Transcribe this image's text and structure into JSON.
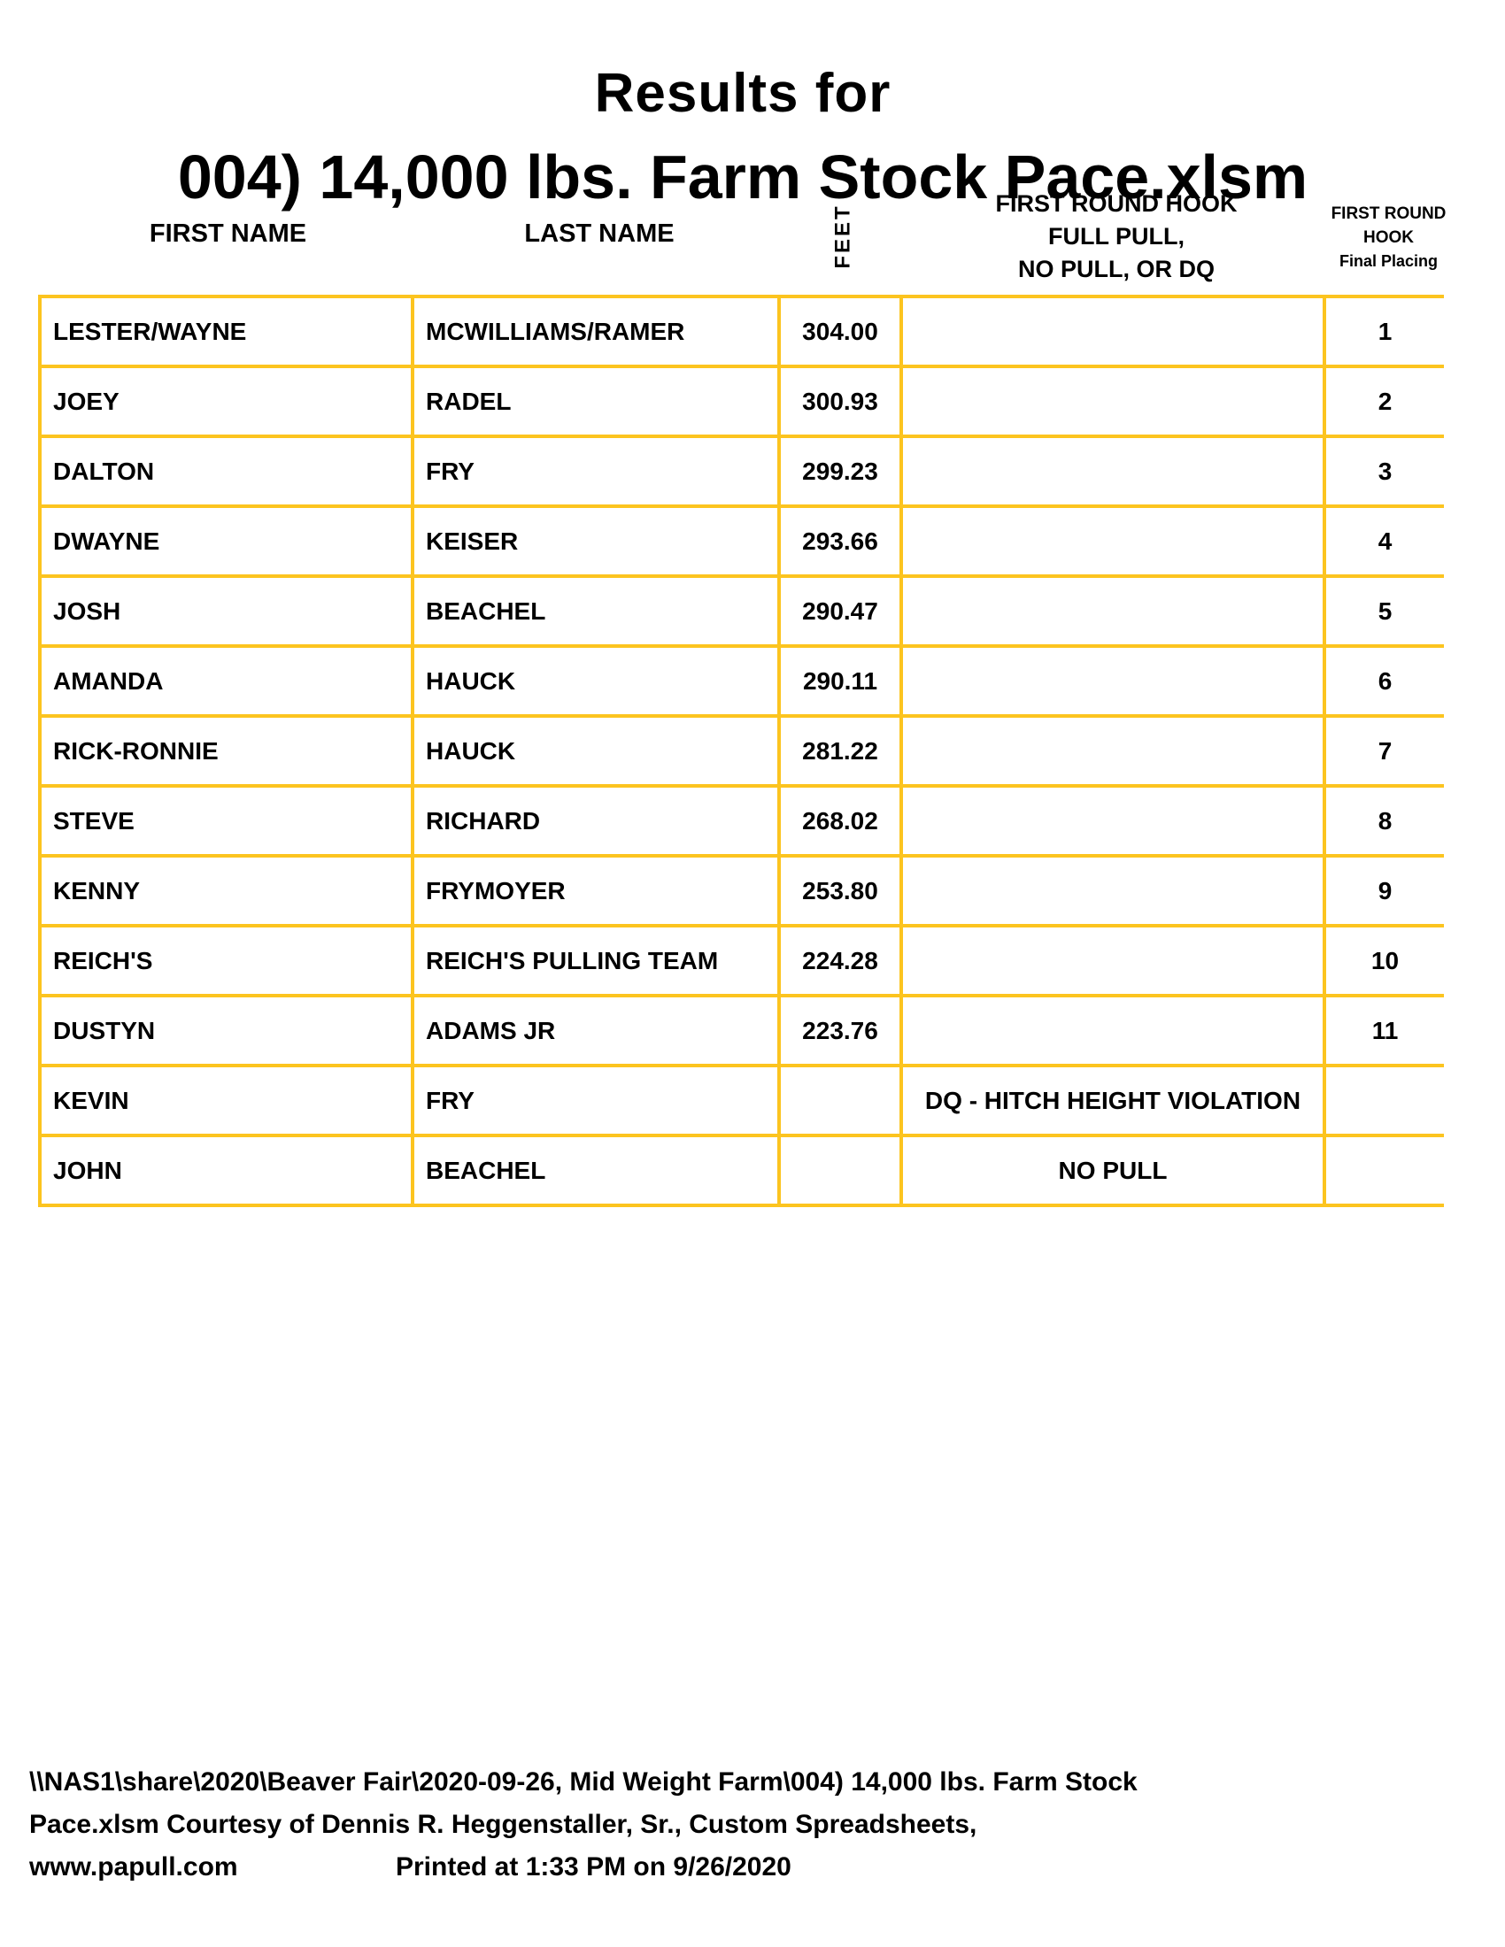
{
  "title": {
    "line1": "Results for",
    "line2": "004) 14,000 lbs. Farm Stock Pace.xlsm"
  },
  "header": {
    "first_name": "FIRST NAME",
    "last_name": "LAST NAME",
    "feet": "FEET",
    "hook_lines": [
      "FIRST ROUND HOOK",
      "FULL PULL,",
      "NO PULL, OR DQ"
    ],
    "placing_lines": [
      "FIRST ROUND",
      "HOOK",
      "Final Placing"
    ]
  },
  "rows": [
    {
      "first_name": "LESTER/WAYNE",
      "last_name": "MCWILLIAMS/RAMER",
      "feet": "304.00",
      "hook": "",
      "placing": "1"
    },
    {
      "first_name": "JOEY",
      "last_name": "RADEL",
      "feet": "300.93",
      "hook": "",
      "placing": "2"
    },
    {
      "first_name": "DALTON",
      "last_name": "FRY",
      "feet": "299.23",
      "hook": "",
      "placing": "3"
    },
    {
      "first_name": "DWAYNE",
      "last_name": "KEISER",
      "feet": "293.66",
      "hook": "",
      "placing": "4"
    },
    {
      "first_name": "JOSH",
      "last_name": "BEACHEL",
      "feet": "290.47",
      "hook": "",
      "placing": "5"
    },
    {
      "first_name": "AMANDA",
      "last_name": "HAUCK",
      "feet": "290.11",
      "hook": "",
      "placing": "6"
    },
    {
      "first_name": "RICK-RONNIE",
      "last_name": "HAUCK",
      "feet": "281.22",
      "hook": "",
      "placing": "7"
    },
    {
      "first_name": "STEVE",
      "last_name": "RICHARD",
      "feet": "268.02",
      "hook": "",
      "placing": "8"
    },
    {
      "first_name": "KENNY",
      "last_name": "FRYMOYER",
      "feet": "253.80",
      "hook": "",
      "placing": "9"
    },
    {
      "first_name": "REICH'S",
      "last_name": "REICH'S PULLING TEAM",
      "feet": "224.28",
      "hook": "",
      "placing": "10"
    },
    {
      "first_name": "DUSTYN",
      "last_name": "ADAMS JR",
      "feet": "223.76",
      "hook": "",
      "placing": "11"
    },
    {
      "first_name": "KEVIN",
      "last_name": "FRY",
      "feet": "",
      "hook": "DQ - HITCH HEIGHT VIOLATION",
      "placing": ""
    },
    {
      "first_name": "JOHN",
      "last_name": "BEACHEL",
      "feet": "",
      "hook": "NO PULL",
      "placing": ""
    }
  ],
  "footer": {
    "line1": "\\\\NAS1\\share\\2020\\Beaver Fair\\2020-09-26, Mid Weight Farm\\004) 14,000 lbs. Farm Stock",
    "line2": "Pace.xlsm  Courtesy of Dennis R. Heggenstaller, Sr., Custom Spreadsheets,",
    "line3_left": "www.papull.com",
    "line3_right": "Printed at 1:33 PM on 9/26/2020"
  },
  "colors": {
    "table_border": "#FCC41F",
    "text": "#000000",
    "background": "#FFFFFF"
  }
}
